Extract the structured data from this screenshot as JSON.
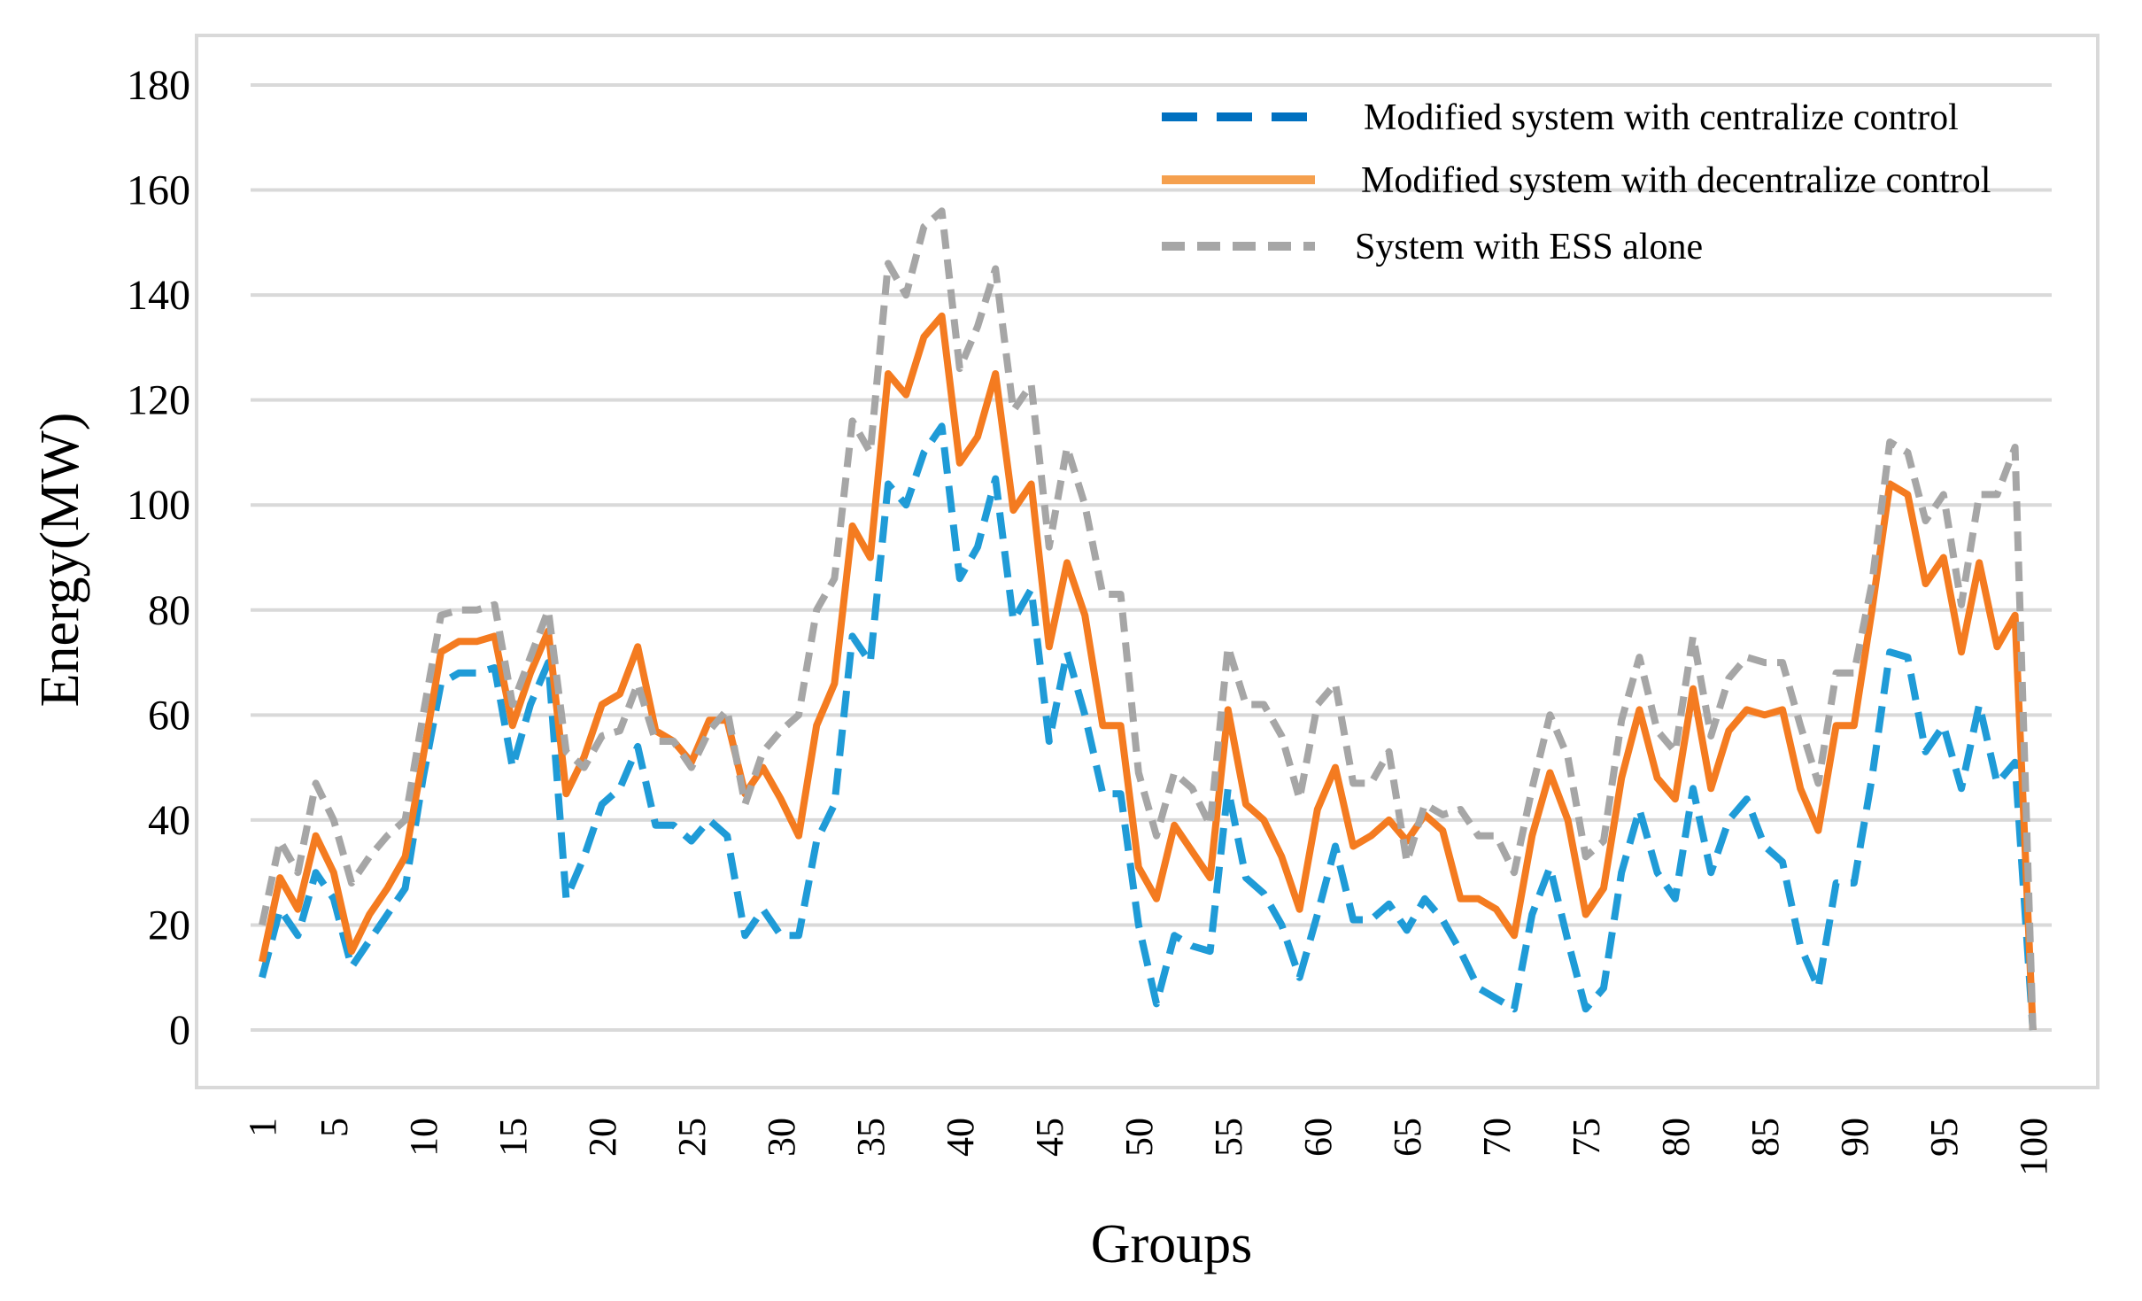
{
  "chart_data": {
    "type": "line",
    "xlabel": "Groups",
    "ylabel": "Energy(MW)",
    "ylim": [
      -10,
      185
    ],
    "yticks": [
      0,
      20,
      40,
      60,
      80,
      100,
      120,
      140,
      160,
      180
    ],
    "xlim": [
      0.5,
      101.5
    ],
    "xticks": [
      1,
      5,
      10,
      15,
      20,
      25,
      30,
      35,
      40,
      45,
      50,
      55,
      60,
      65,
      70,
      75,
      80,
      85,
      90,
      95,
      100
    ],
    "grid": true,
    "legend_position": "top-right",
    "series": [
      {
        "name": "Modified system with centralize control",
        "color": "#1f9bd7",
        "legend_color": "#0070c0",
        "style": "dashed",
        "x": [
          1,
          2,
          3,
          4,
          5,
          6,
          7,
          8,
          9,
          10,
          11,
          12,
          13,
          14,
          15,
          16,
          17,
          18,
          19,
          20,
          21,
          22,
          23,
          24,
          25,
          26,
          27,
          28,
          29,
          30,
          31,
          32,
          33,
          34,
          35,
          36,
          37,
          38,
          39,
          40,
          41,
          42,
          43,
          44,
          45,
          46,
          47,
          48,
          49,
          50,
          51,
          52,
          53,
          54,
          55,
          56,
          57,
          58,
          59,
          60,
          61,
          62,
          63,
          64,
          65,
          66,
          67,
          68,
          69,
          70,
          71,
          72,
          73,
          74,
          75,
          76,
          77,
          78,
          79,
          80,
          81,
          82,
          83,
          84,
          85,
          86,
          87,
          88,
          89,
          90,
          91,
          92,
          93,
          94,
          95,
          96,
          97,
          98,
          99,
          100,
          101
        ],
        "values": [
          10,
          23,
          18,
          30,
          25,
          12,
          17,
          22,
          27,
          48,
          66,
          68,
          68,
          69,
          50,
          62,
          70,
          25,
          33,
          43,
          46,
          54,
          39,
          39,
          36,
          40,
          37,
          18,
          23,
          18,
          18,
          36,
          43,
          75,
          70,
          104,
          100,
          110,
          115,
          86,
          92,
          105,
          78,
          84,
          55,
          72,
          60,
          45,
          45,
          20,
          5,
          18,
          16,
          15,
          46,
          29,
          26,
          20,
          10,
          22,
          35,
          21,
          21,
          24,
          19,
          25,
          21,
          15,
          8,
          6,
          4,
          22,
          31,
          17,
          4,
          8,
          30,
          42,
          30,
          25,
          46,
          30,
          40,
          44,
          35,
          32,
          16,
          8,
          28,
          28,
          48,
          72,
          71,
          53,
          58,
          46,
          62,
          47,
          51,
          0,
          0
        ]
      },
      {
        "name": "Modified system with decentralize control",
        "color": "#f47b20",
        "legend_color": "#f5a04e",
        "style": "solid",
        "x": [
          1,
          2,
          3,
          4,
          5,
          6,
          7,
          8,
          9,
          10,
          11,
          12,
          13,
          14,
          15,
          16,
          17,
          18,
          19,
          20,
          21,
          22,
          23,
          24,
          25,
          26,
          27,
          28,
          29,
          30,
          31,
          32,
          33,
          34,
          35,
          36,
          37,
          38,
          39,
          40,
          41,
          42,
          43,
          44,
          45,
          46,
          47,
          48,
          49,
          50,
          51,
          52,
          53,
          54,
          55,
          56,
          57,
          58,
          59,
          60,
          61,
          62,
          63,
          64,
          65,
          66,
          67,
          68,
          69,
          70,
          71,
          72,
          73,
          74,
          75,
          76,
          77,
          78,
          79,
          80,
          81,
          82,
          83,
          84,
          85,
          86,
          87,
          88,
          89,
          90,
          91,
          92,
          93,
          94,
          95,
          96,
          97,
          98,
          99,
          100,
          101
        ],
        "values": [
          13,
          29,
          23,
          37,
          30,
          15,
          22,
          27,
          33,
          52,
          72,
          74,
          74,
          75,
          58,
          68,
          76,
          45,
          52,
          62,
          64,
          73,
          57,
          55,
          51,
          59,
          59,
          45,
          50,
          44,
          37,
          58,
          66,
          96,
          90,
          125,
          121,
          132,
          136,
          108,
          113,
          125,
          99,
          104,
          73,
          89,
          79,
          58,
          58,
          31,
          25,
          39,
          34,
          29,
          61,
          43,
          40,
          33,
          23,
          42,
          50,
          35,
          37,
          40,
          36,
          41,
          38,
          25,
          25,
          23,
          18,
          37,
          49,
          40,
          22,
          27,
          48,
          61,
          48,
          44,
          65,
          46,
          57,
          61,
          60,
          61,
          46,
          38,
          58,
          58,
          80,
          104,
          102,
          85,
          90,
          72,
          89,
          73,
          79,
          0,
          0
        ]
      },
      {
        "name": "System with ESS alone",
        "color": "#a6a6a6",
        "legend_color": "#a6a6a6",
        "style": "dashed",
        "x": [
          1,
          2,
          3,
          4,
          5,
          6,
          7,
          8,
          9,
          10,
          11,
          12,
          13,
          14,
          15,
          16,
          17,
          18,
          19,
          20,
          21,
          22,
          23,
          24,
          25,
          26,
          27,
          28,
          29,
          30,
          31,
          32,
          33,
          34,
          35,
          36,
          37,
          38,
          39,
          40,
          41,
          42,
          43,
          44,
          45,
          46,
          47,
          48,
          49,
          50,
          51,
          52,
          53,
          54,
          55,
          56,
          57,
          58,
          59,
          60,
          61,
          62,
          63,
          64,
          65,
          66,
          67,
          68,
          69,
          70,
          71,
          72,
          73,
          74,
          75,
          76,
          77,
          78,
          79,
          80,
          81,
          82,
          83,
          84,
          85,
          86,
          87,
          88,
          89,
          90,
          91,
          92,
          93,
          94,
          95,
          96,
          97,
          98,
          99,
          100,
          101
        ],
        "values": [
          20,
          36,
          30,
          47,
          40,
          28,
          33,
          37,
          40,
          60,
          79,
          80,
          80,
          81,
          62,
          71,
          80,
          53,
          50,
          56,
          57,
          66,
          55,
          55,
          50,
          57,
          61,
          43,
          53,
          57,
          60,
          80,
          86,
          116,
          110,
          146,
          140,
          153,
          156,
          126,
          134,
          145,
          118,
          123,
          92,
          111,
          100,
          83,
          83,
          49,
          37,
          49,
          46,
          39,
          73,
          62,
          62,
          56,
          44,
          62,
          66,
          47,
          47,
          53,
          32,
          43,
          41,
          42,
          37,
          37,
          30,
          46,
          60,
          52,
          33,
          36,
          59,
          71,
          57,
          53,
          75,
          56,
          67,
          71,
          70,
          70,
          58,
          47,
          68,
          68,
          85,
          112,
          110,
          97,
          102,
          81,
          102,
          102,
          111,
          0,
          0
        ]
      }
    ]
  }
}
